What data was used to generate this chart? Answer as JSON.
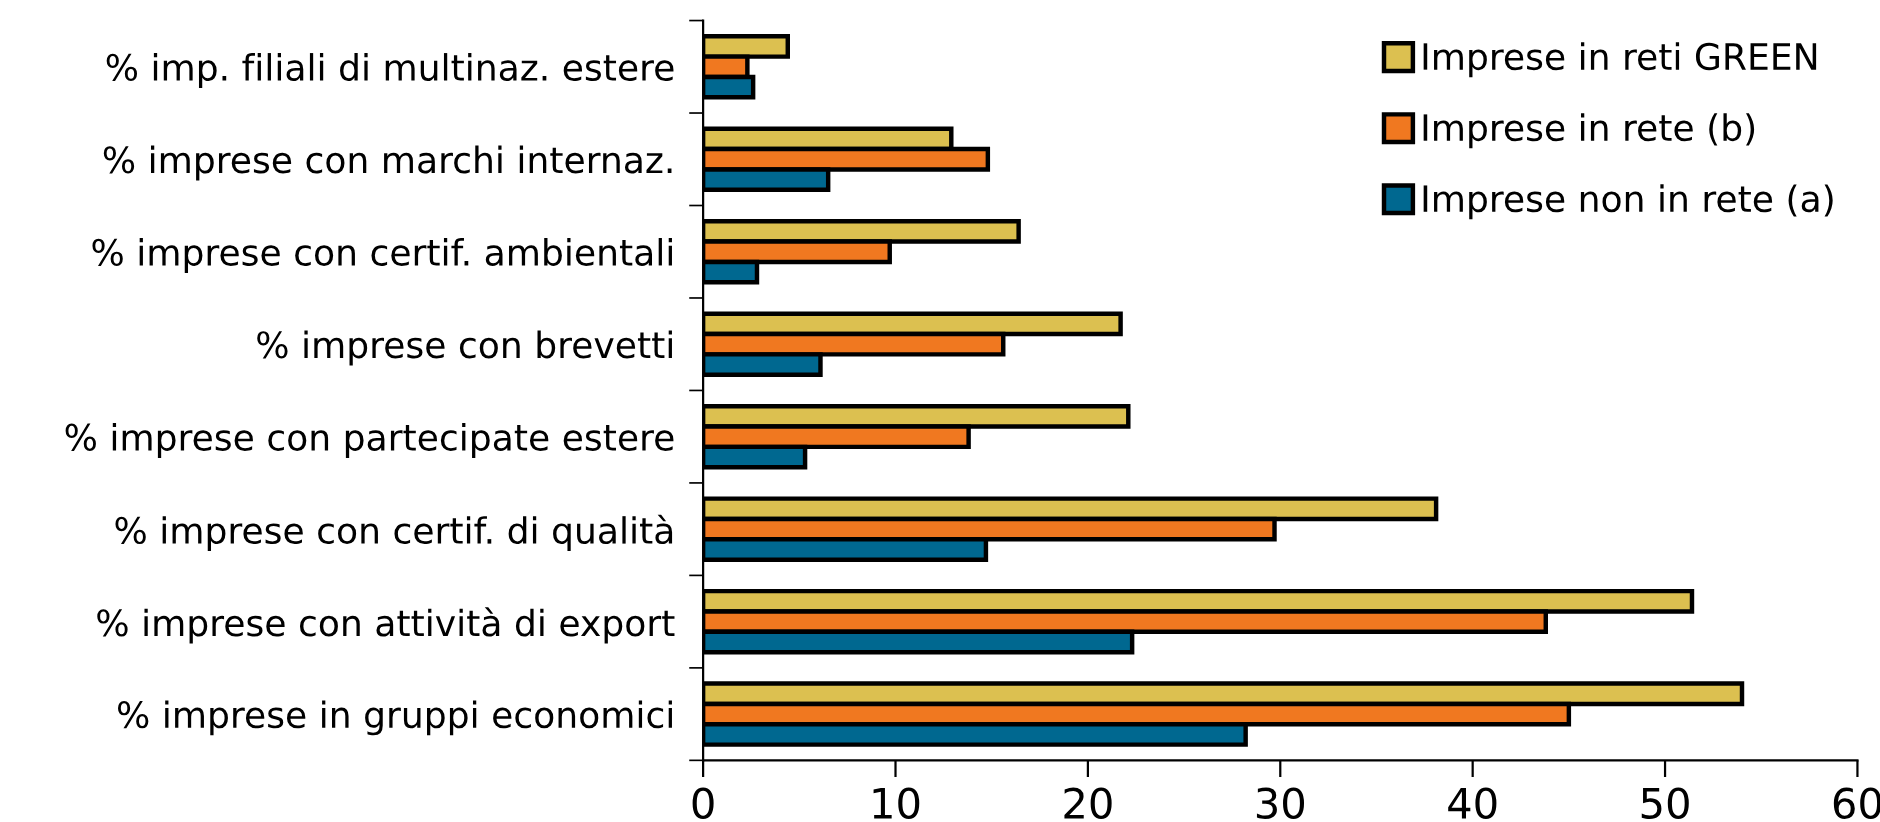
{
  "chart_data": {
    "type": "bar",
    "orientation": "horizontal",
    "categories": [
      "% imp. filiali di multinaz. estere",
      "% imprese con marchi internaz.",
      "% imprese con certif. ambientali",
      "% imprese con brevetti",
      "% imprese con partecipate estere",
      "% imprese con certif. di qualità",
      "% imprese con attività di export",
      "% imprese in gruppi economici"
    ],
    "series": [
      {
        "name": "Imprese in reti GREEN",
        "color": "#dcc050",
        "values": [
          4.4,
          12.9,
          16.4,
          21.7,
          22.1,
          38.1,
          51.4,
          54.0
        ]
      },
      {
        "name": "Imprese in rete (b)",
        "color": "#f07820",
        "values": [
          2.3,
          14.8,
          9.7,
          15.6,
          13.8,
          29.7,
          43.8,
          45.0
        ]
      },
      {
        "name": "Imprese non in rete (a)",
        "color": "#006890",
        "values": [
          2.6,
          6.5,
          2.8,
          6.1,
          5.3,
          14.7,
          22.3,
          28.2
        ]
      }
    ],
    "xlim": [
      0,
      60
    ],
    "xticks": [
      0,
      10,
      20,
      30,
      40,
      50,
      60
    ],
    "grid": false,
    "legend": "top right"
  }
}
